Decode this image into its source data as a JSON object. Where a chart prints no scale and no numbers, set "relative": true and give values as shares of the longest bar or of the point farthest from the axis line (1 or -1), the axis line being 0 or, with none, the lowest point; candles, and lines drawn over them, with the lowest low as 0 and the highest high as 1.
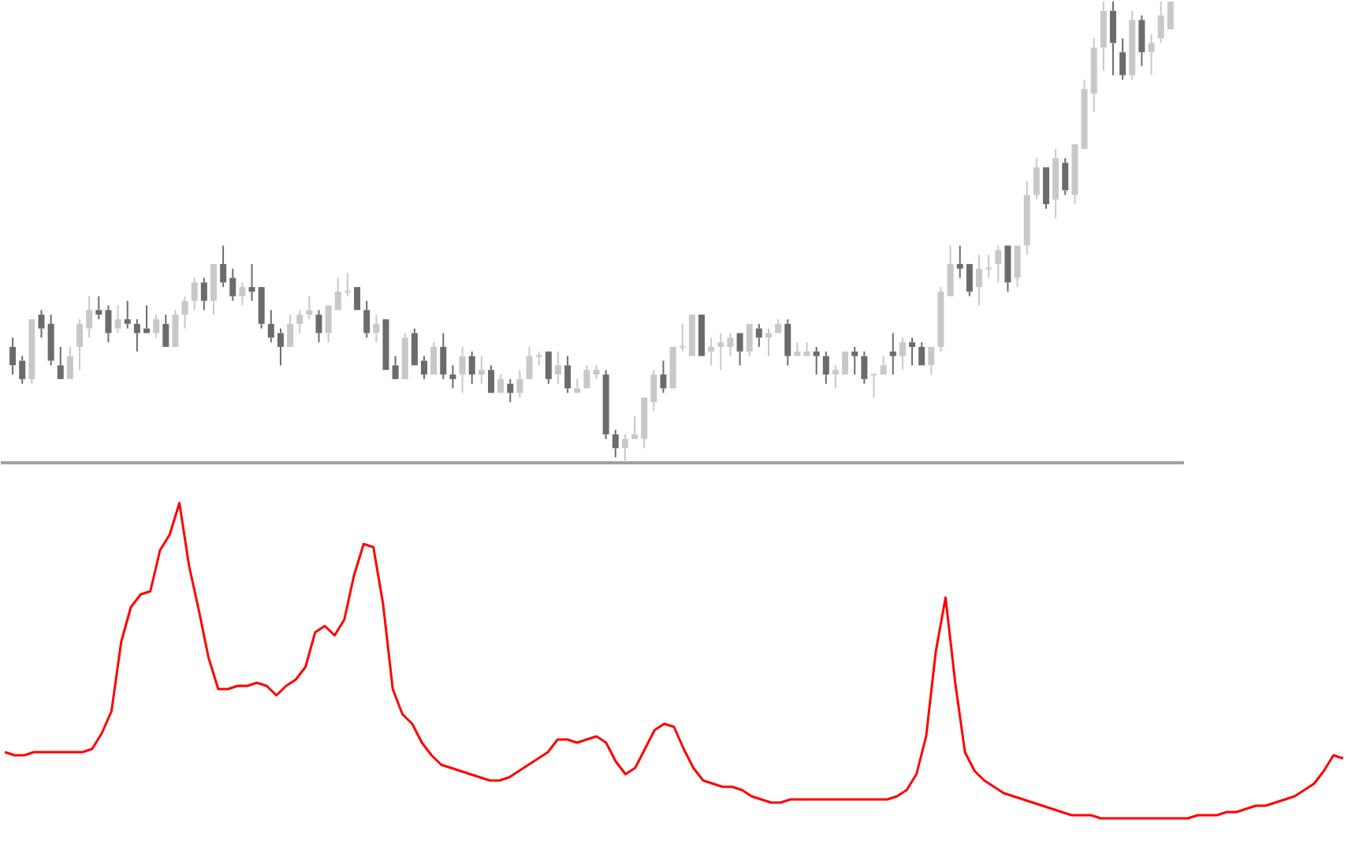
{
  "chart_data": [
    {
      "type": "candlestick",
      "relative": true,
      "tick_labels": false,
      "categories": [
        null,
        null,
        null,
        null,
        null,
        null,
        null,
        null,
        null,
        null,
        null,
        null,
        null,
        null,
        null,
        null,
        null,
        null,
        null,
        null,
        null,
        null,
        null,
        null,
        null,
        null,
        null,
        null,
        null,
        null,
        null,
        null,
        null,
        null,
        null,
        null,
        null,
        null,
        null,
        null,
        null,
        null,
        null,
        null,
        null,
        null,
        null,
        null,
        null,
        null,
        null,
        null,
        null,
        null,
        null,
        null,
        null,
        null,
        null,
        null,
        null,
        null,
        null,
        null,
        null,
        null,
        null,
        null,
        null,
        null,
        null,
        null,
        null,
        null,
        null,
        null,
        null,
        null,
        null,
        null,
        null,
        null,
        null,
        null,
        null,
        null,
        null,
        null,
        null,
        null,
        null,
        null,
        null,
        null,
        null,
        null,
        null,
        null,
        null,
        null,
        null,
        null,
        null,
        null,
        null,
        null,
        null,
        null,
        null,
        null,
        null,
        null,
        null,
        null,
        null,
        null,
        null,
        null,
        null,
        null,
        null,
        null
      ],
      "colors": [
        "#6b6b6b",
        "#6b6b6b",
        "#c8c8c8",
        "#6b6b6b",
        "#6b6b6b",
        "#6b6b6b",
        "#c8c8c8",
        "#c8c8c8",
        "#c8c8c8",
        "#6b6b6b",
        "#6b6b6b",
        "#c8c8c8",
        "#6b6b6b",
        "#6b6b6b",
        "#6b6b6b",
        "#c8c8c8",
        "#6b6b6b",
        "#c8c8c8",
        "#c8c8c8",
        "#c8c8c8",
        "#6b6b6b",
        "#c8c8c8",
        "#6b6b6b",
        "#6b6b6b",
        "#c8c8c8",
        "#6b6b6b",
        "#6b6b6b",
        "#6b6b6b",
        "#6b6b6b",
        "#c8c8c8",
        "#c8c8c8",
        "#c8c8c8",
        "#6b6b6b",
        "#c8c8c8",
        "#c8c8c8",
        "#c8c8c8",
        "#6b6b6b",
        "#6b6b6b",
        "#c8c8c8",
        "#6b6b6b",
        "#6b6b6b",
        "#c8c8c8",
        "#6b6b6b",
        "#6b6b6b",
        "#c8c8c8",
        "#6b6b6b",
        "#6b6b6b",
        "#c8c8c8",
        "#6b6b6b",
        "#c8c8c8",
        "#6b6b6b",
        "#c8c8c8",
        "#6b6b6b",
        "#c8c8c8",
        "#c8c8c8",
        "#c8c8c8",
        "#6b6b6b",
        "#c8c8c8",
        "#6b6b6b",
        "#c8c8c8",
        "#c8c8c8",
        "#c8c8c8",
        "#6b6b6b",
        "#6b6b6b",
        "#c8c8c8",
        "#c8c8c8",
        "#c8c8c8",
        "#c8c8c8",
        "#6b6b6b",
        "#c8c8c8",
        "#c8c8c8",
        "#c8c8c8",
        "#6b6b6b",
        "#c8c8c8",
        "#c8c8c8",
        "#c8c8c8",
        "#6b6b6b",
        "#c8c8c8",
        "#6b6b6b",
        "#c8c8c8",
        "#c8c8c8",
        "#6b6b6b",
        "#c8c8c8",
        "#c8c8c8",
        "#6b6b6b",
        "#6b6b6b",
        "#c8c8c8",
        "#c8c8c8",
        "#6b6b6b",
        "#6b6b6b",
        "#c8c8c8",
        "#c8c8c8",
        "#6b6b6b",
        "#c8c8c8",
        "#6b6b6b",
        "#6b6b6b",
        "#c8c8c8",
        "#c8c8c8",
        "#c8c8c8",
        "#6b6b6b",
        "#6b6b6b",
        "#c8c8c8",
        "#c8c8c8",
        "#c8c8c8",
        "#6b6b6b",
        "#c8c8c8",
        "#c8c8c8",
        "#c8c8c8",
        "#6b6b6b",
        "#c8c8c8",
        "#6b6b6b",
        "#c8c8c8",
        "#c8c8c8",
        "#c8c8c8",
        "#c8c8c8",
        "#6b6b6b",
        "#6b6b6b",
        "#c8c8c8",
        "#6b6b6b",
        "#c8c8c8",
        "#c8c8c8",
        "#c8c8c8"
      ],
      "ohlc": [
        [
          0.25,
          0.27,
          0.19,
          0.21
        ],
        [
          0.22,
          0.23,
          0.17,
          0.18
        ],
        [
          0.18,
          0.31,
          0.17,
          0.31
        ],
        [
          0.32,
          0.33,
          0.27,
          0.29
        ],
        [
          0.3,
          0.32,
          0.21,
          0.22
        ],
        [
          0.21,
          0.25,
          0.18,
          0.18
        ],
        [
          0.18,
          0.25,
          0.18,
          0.23
        ],
        [
          0.25,
          0.31,
          0.2,
          0.3
        ],
        [
          0.29,
          0.36,
          0.27,
          0.33
        ],
        [
          0.33,
          0.36,
          0.31,
          0.32
        ],
        [
          0.33,
          0.34,
          0.26,
          0.28
        ],
        [
          0.29,
          0.34,
          0.28,
          0.31
        ],
        [
          0.31,
          0.35,
          0.29,
          0.3
        ],
        [
          0.3,
          0.31,
          0.24,
          0.28
        ],
        [
          0.29,
          0.34,
          0.28,
          0.28
        ],
        [
          0.28,
          0.32,
          0.27,
          0.31
        ],
        [
          0.3,
          0.32,
          0.25,
          0.25
        ],
        [
          0.25,
          0.33,
          0.25,
          0.32
        ],
        [
          0.32,
          0.36,
          0.29,
          0.35
        ],
        [
          0.35,
          0.4,
          0.33,
          0.39
        ],
        [
          0.39,
          0.4,
          0.33,
          0.35
        ],
        [
          0.35,
          0.43,
          0.32,
          0.43
        ],
        [
          0.43,
          0.47,
          0.38,
          0.39
        ],
        [
          0.4,
          0.42,
          0.35,
          0.36
        ],
        [
          0.36,
          0.39,
          0.34,
          0.38
        ],
        [
          0.38,
          0.43,
          0.35,
          0.37
        ],
        [
          0.38,
          0.38,
          0.29,
          0.3
        ],
        [
          0.3,
          0.33,
          0.26,
          0.27
        ],
        [
          0.28,
          0.29,
          0.21,
          0.25
        ],
        [
          0.25,
          0.32,
          0.25,
          0.3
        ],
        [
          0.3,
          0.33,
          0.28,
          0.32
        ],
        [
          0.32,
          0.36,
          0.31,
          0.33
        ],
        [
          0.32,
          0.33,
          0.26,
          0.28
        ],
        [
          0.28,
          0.34,
          0.26,
          0.34
        ],
        [
          0.33,
          0.4,
          0.33,
          0.37
        ],
        [
          0.37,
          0.41,
          0.36,
          0.37
        ],
        [
          0.38,
          0.38,
          0.33,
          0.33
        ],
        [
          0.33,
          0.35,
          0.27,
          0.28
        ],
        [
          0.28,
          0.32,
          0.26,
          0.3
        ],
        [
          0.31,
          0.31,
          0.2,
          0.2
        ],
        [
          0.21,
          0.23,
          0.18,
          0.18
        ],
        [
          0.18,
          0.28,
          0.18,
          0.27
        ],
        [
          0.28,
          0.29,
          0.21,
          0.21
        ],
        [
          0.22,
          0.23,
          0.18,
          0.19
        ],
        [
          0.19,
          0.26,
          0.19,
          0.25
        ],
        [
          0.25,
          0.28,
          0.18,
          0.19
        ],
        [
          0.19,
          0.21,
          0.16,
          0.18
        ],
        [
          0.19,
          0.25,
          0.15,
          0.23
        ],
        [
          0.23,
          0.24,
          0.17,
          0.19
        ],
        [
          0.19,
          0.23,
          0.17,
          0.2
        ],
        [
          0.2,
          0.21,
          0.15,
          0.15
        ],
        [
          0.15,
          0.19,
          0.15,
          0.18
        ],
        [
          0.17,
          0.18,
          0.13,
          0.15
        ],
        [
          0.15,
          0.2,
          0.14,
          0.18
        ],
        [
          0.18,
          0.25,
          0.18,
          0.23
        ],
        [
          0.23,
          0.24,
          0.21,
          0.23
        ],
        [
          0.24,
          0.24,
          0.17,
          0.18
        ],
        [
          0.19,
          0.24,
          0.17,
          0.21
        ],
        [
          0.21,
          0.23,
          0.15,
          0.16
        ],
        [
          0.15,
          0.18,
          0.15,
          0.16
        ],
        [
          0.16,
          0.21,
          0.16,
          0.2
        ],
        [
          0.19,
          0.21,
          0.18,
          0.2
        ],
        [
          0.19,
          0.2,
          0.05,
          0.06
        ],
        [
          0.06,
          0.07,
          0.01,
          0.03
        ],
        [
          0.03,
          0.06,
          0.0,
          0.05
        ],
        [
          0.05,
          0.1,
          0.05,
          0.06
        ],
        [
          0.05,
          0.14,
          0.03,
          0.14
        ],
        [
          0.13,
          0.2,
          0.11,
          0.19
        ],
        [
          0.19,
          0.22,
          0.15,
          0.16
        ],
        [
          0.16,
          0.25,
          0.16,
          0.25
        ],
        [
          0.25,
          0.3,
          0.24,
          0.25
        ],
        [
          0.23,
          0.32,
          0.23,
          0.32
        ],
        [
          0.32,
          0.32,
          0.23,
          0.23
        ],
        [
          0.24,
          0.27,
          0.21,
          0.25
        ],
        [
          0.25,
          0.28,
          0.2,
          0.26
        ],
        [
          0.25,
          0.28,
          0.23,
          0.27
        ],
        [
          0.28,
          0.28,
          0.21,
          0.24
        ],
        [
          0.24,
          0.3,
          0.23,
          0.3
        ],
        [
          0.29,
          0.3,
          0.25,
          0.27
        ],
        [
          0.27,
          0.29,
          0.23,
          0.28
        ],
        [
          0.28,
          0.31,
          0.28,
          0.3
        ],
        [
          0.3,
          0.31,
          0.21,
          0.23
        ],
        [
          0.23,
          0.26,
          0.23,
          0.24
        ],
        [
          0.23,
          0.26,
          0.23,
          0.24
        ],
        [
          0.24,
          0.25,
          0.19,
          0.23
        ],
        [
          0.23,
          0.24,
          0.17,
          0.19
        ],
        [
          0.19,
          0.21,
          0.16,
          0.2
        ],
        [
          0.19,
          0.24,
          0.19,
          0.24
        ],
        [
          0.24,
          0.25,
          0.19,
          0.23
        ],
        [
          0.23,
          0.24,
          0.17,
          0.18
        ],
        [
          0.19,
          0.19,
          0.14,
          0.19
        ],
        [
          0.19,
          0.23,
          0.19,
          0.21
        ],
        [
          0.24,
          0.28,
          0.19,
          0.23
        ],
        [
          0.23,
          0.27,
          0.2,
          0.26
        ],
        [
          0.26,
          0.27,
          0.21,
          0.25
        ],
        [
          0.25,
          0.26,
          0.21,
          0.21
        ],
        [
          0.21,
          0.25,
          0.19,
          0.25
        ],
        [
          0.25,
          0.38,
          0.24,
          0.37
        ],
        [
          0.36,
          0.47,
          0.36,
          0.43
        ],
        [
          0.43,
          0.47,
          0.4,
          0.42
        ],
        [
          0.43,
          0.43,
          0.36,
          0.37
        ],
        [
          0.38,
          0.45,
          0.34,
          0.42
        ],
        [
          0.42,
          0.45,
          0.4,
          0.42
        ],
        [
          0.43,
          0.47,
          0.39,
          0.46
        ],
        [
          0.47,
          0.47,
          0.37,
          0.39
        ],
        [
          0.4,
          0.47,
          0.38,
          0.47
        ],
        [
          0.47,
          0.61,
          0.45,
          0.58
        ],
        [
          0.58,
          0.66,
          0.57,
          0.64
        ],
        [
          0.64,
          0.64,
          0.55,
          0.56
        ],
        [
          0.57,
          0.68,
          0.53,
          0.66
        ],
        [
          0.65,
          0.66,
          0.58,
          0.59
        ],
        [
          0.58,
          0.69,
          0.56,
          0.69
        ],
        [
          0.68,
          0.83,
          0.68,
          0.81
        ],
        [
          0.8,
          0.92,
          0.76,
          0.9
        ],
        [
          0.9,
          1.0,
          0.85,
          0.98
        ],
        [
          0.98,
          1.0,
          0.84,
          0.91
        ],
        [
          0.89,
          0.92,
          0.83,
          0.84
        ],
        [
          0.84,
          0.98,
          0.83,
          0.96
        ],
        [
          0.96,
          0.97,
          0.86,
          0.89
        ],
        [
          0.89,
          0.93,
          0.84,
          0.91
        ],
        [
          0.92,
          1.0,
          0.91,
          0.97
        ],
        [
          0.94,
          1.0,
          0.94,
          1.0
        ]
      ]
    },
    {
      "type": "line",
      "relative": true,
      "tick_labels": false,
      "categories": [
        null,
        null,
        null,
        null,
        null,
        null,
        null,
        null,
        null,
        null,
        null,
        null,
        null,
        null,
        null,
        null,
        null,
        null,
        null,
        null,
        null,
        null,
        null,
        null,
        null,
        null,
        null,
        null,
        null,
        null,
        null,
        null,
        null,
        null,
        null,
        null,
        null,
        null,
        null,
        null,
        null,
        null,
        null,
        null,
        null,
        null,
        null,
        null,
        null,
        null,
        null,
        null,
        null,
        null,
        null,
        null,
        null,
        null,
        null,
        null,
        null,
        null,
        null,
        null,
        null,
        null,
        null,
        null,
        null,
        null,
        null,
        null,
        null,
        null,
        null,
        null,
        null,
        null,
        null,
        null,
        null,
        null,
        null,
        null,
        null,
        null,
        null,
        null,
        null,
        null,
        null,
        null,
        null,
        null,
        null,
        null,
        null,
        null,
        null,
        null,
        null,
        null,
        null,
        null,
        null,
        null,
        null,
        null,
        null,
        null,
        null,
        null,
        null,
        null,
        null,
        null,
        null,
        null,
        null,
        null,
        null,
        null,
        null,
        null,
        null,
        null,
        null,
        null,
        null,
        null,
        null,
        null,
        null,
        null,
        null,
        null,
        null,
        null,
        null
      ],
      "series": [
        {
          "color": "#ff0000",
          "values": [
            0.21,
            0.2,
            0.2,
            0.21,
            0.21,
            0.21,
            0.21,
            0.21,
            0.21,
            0.22,
            0.27,
            0.34,
            0.56,
            0.67,
            0.71,
            0.72,
            0.85,
            0.9,
            1.0,
            0.8,
            0.66,
            0.51,
            0.41,
            0.41,
            0.42,
            0.42,
            0.43,
            0.42,
            0.39,
            0.42,
            0.44,
            0.48,
            0.59,
            0.61,
            0.58,
            0.63,
            0.77,
            0.87,
            0.86,
            0.68,
            0.41,
            0.33,
            0.3,
            0.24,
            0.2,
            0.17,
            0.16,
            0.15,
            0.14,
            0.13,
            0.12,
            0.12,
            0.13,
            0.15,
            0.17,
            0.19,
            0.21,
            0.25,
            0.25,
            0.24,
            0.25,
            0.26,
            0.24,
            0.18,
            0.14,
            0.16,
            0.22,
            0.28,
            0.3,
            0.29,
            0.22,
            0.16,
            0.12,
            0.11,
            0.1,
            0.1,
            0.09,
            0.07,
            0.06,
            0.05,
            0.05,
            0.06,
            0.06,
            0.06,
            0.06,
            0.06,
            0.06,
            0.06,
            0.06,
            0.06,
            0.06,
            0.06,
            0.07,
            0.09,
            0.14,
            0.26,
            0.53,
            0.7,
            0.43,
            0.21,
            0.15,
            0.12,
            0.1,
            0.08,
            0.07,
            0.06,
            0.05,
            0.04,
            0.03,
            0.02,
            0.01,
            0.01,
            0.01,
            0,
            0,
            0,
            0,
            0,
            0,
            0,
            0,
            0,
            0,
            0.01,
            0.01,
            0.01,
            0.02,
            0.02,
            0.03,
            0.04,
            0.04,
            0.05,
            0.06,
            0.07,
            0.09,
            0.11,
            0.15,
            0.2,
            0.19
          ]
        }
      ]
    }
  ]
}
